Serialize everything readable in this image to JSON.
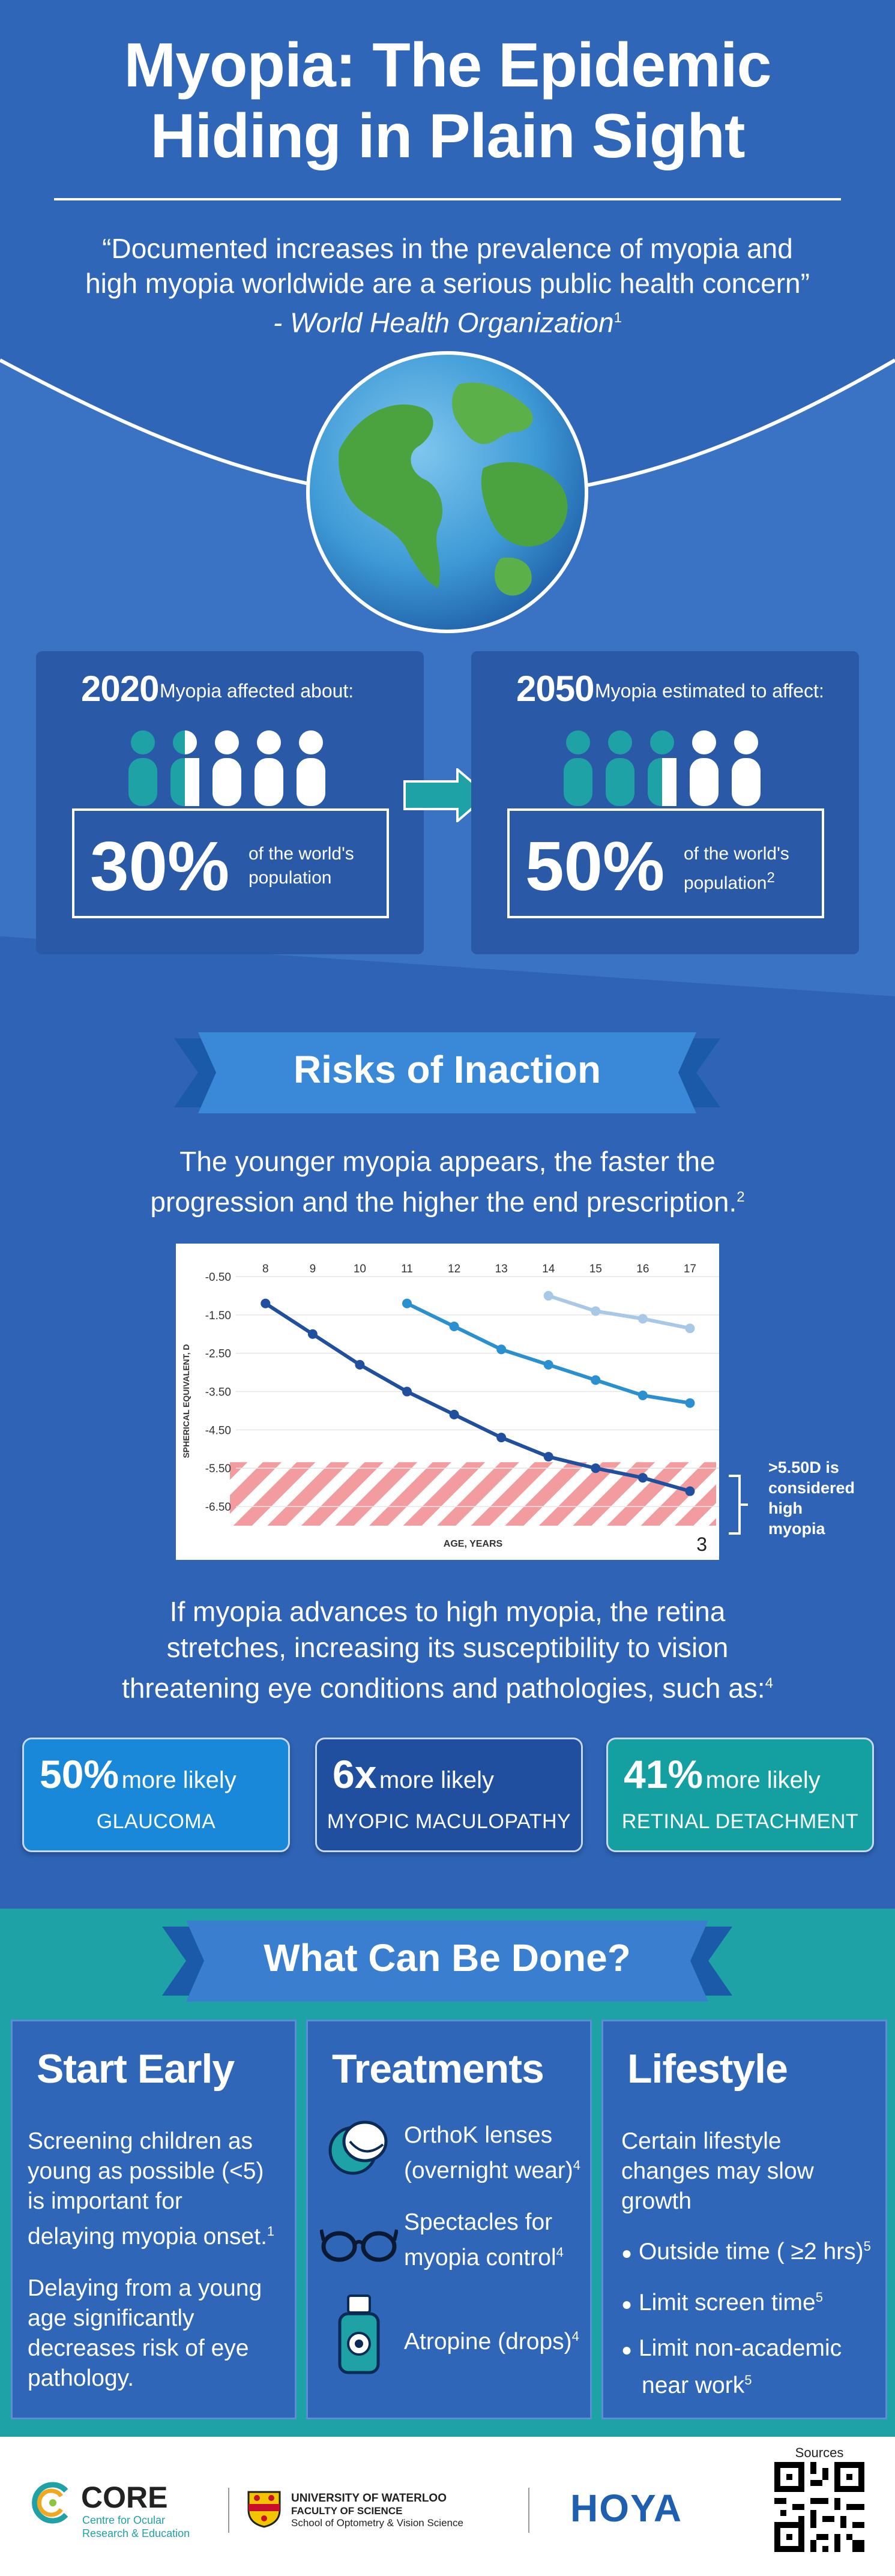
{
  "header": {
    "title_line1": "Myopia: The Epidemic",
    "title_line2": "Hiding in Plain Sight",
    "quote_line1": "“Documented increases in the prevalence of myopia and",
    "quote_line2": "high myopia worldwide are a serious public health concern”",
    "quote_source": "- World Health Organization",
    "quote_ref": "1"
  },
  "stats": [
    {
      "year": "2020",
      "label": "Myopia affected about:",
      "percent": "30%",
      "desc1": "of the world's",
      "desc2": "population",
      "ref": ""
    },
    {
      "year": "2050",
      "label": "Myopia estimated to affect:",
      "percent": "50%",
      "desc1": "of the world's",
      "desc2": "population",
      "ref": "2"
    }
  ],
  "risks": {
    "banner": "Risks of Inaction",
    "intro_line1": "The younger myopia appears, the faster the",
    "intro_line2": "progression and the higher the end prescription.",
    "intro_ref": "2",
    "after_line1": "If myopia advances to high myopia, the retina",
    "after_line2": "stretches, increasing its susceptibility to vision",
    "after_line3": "threatening eye conditions and pathologies, such as:",
    "after_ref": "4",
    "cards": [
      {
        "value": "50%",
        "unit": "more likely",
        "label": "GLAUCOMA",
        "color": "#1a88d8"
      },
      {
        "value": "6x",
        "unit": "more likely",
        "label": "MYOPIC MACULOPATHY",
        "color": "#1f4f9e"
      },
      {
        "value": "41%",
        "unit": "more likely",
        "label": "RETINAL DETACHMENT",
        "color": "#14a0a0"
      }
    ]
  },
  "chart_data": {
    "type": "line",
    "x": [
      8,
      9,
      10,
      11,
      12,
      13,
      14,
      15,
      16,
      17
    ],
    "x_tick_labels": [
      "8",
      "9",
      "10",
      "11",
      "12",
      "13",
      "14",
      "15",
      "16",
      "17"
    ],
    "y_tick_labels": [
      "-0.50",
      "-1.50",
      "-2.50",
      "-3.50",
      "-4.50",
      "-5.50",
      "-6.50"
    ],
    "ylim": [
      -7.0,
      -0.5
    ],
    "xlabel": "AGE, YEARS",
    "ylabel": "SPHERICAL EQUIVALENT, D",
    "chart_ref": "3",
    "high_myopia_threshold": -5.5,
    "annotation_line1": ">5.50D is",
    "annotation_line2": "considered",
    "annotation_line3": "high",
    "annotation_line4": "myopia",
    "series": [
      {
        "name": "onset age 8",
        "x": [
          8,
          9,
          10,
          11,
          12,
          13,
          14,
          15,
          16,
          17
        ],
        "values": [
          -1.2,
          -2.0,
          -2.8,
          -3.5,
          -4.1,
          -4.7,
          -5.2,
          -5.5,
          -5.75,
          -6.1
        ],
        "color": "#1f4f9e"
      },
      {
        "name": "onset age 11",
        "x": [
          11,
          12,
          13,
          14,
          15,
          16,
          17
        ],
        "values": [
          -1.2,
          -1.8,
          -2.4,
          -2.8,
          -3.2,
          -3.6,
          -3.8
        ],
        "color": "#2a90d0"
      },
      {
        "name": "onset age 14",
        "x": [
          14,
          15,
          16,
          17
        ],
        "values": [
          -1.0,
          -1.4,
          -1.6,
          -1.85
        ],
        "color": "#a9c8e8"
      }
    ]
  },
  "actions": {
    "banner": "What Can Be Done?",
    "columns": [
      {
        "title": "Start Early",
        "p1_line1": "Screening children as",
        "p1_line2": "young as possible (<5)",
        "p1_line3": "is important for",
        "p1_line4": "delaying myopia onset.",
        "p1_ref": "1",
        "p2_line1": "Delaying from a young",
        "p2_line2": "age significantly",
        "p2_line3": "decreases risk of eye",
        "p2_line4": "pathology."
      },
      {
        "title": "Treatments",
        "items": [
          {
            "line1": "OrthoK lenses",
            "line2": "(overnight wear)",
            "ref": "4"
          },
          {
            "line1": "Spectacles for",
            "line2": "myopia control",
            "ref": "4"
          },
          {
            "line1": "Atropine (drops)",
            "line2": "",
            "ref": "4"
          }
        ]
      },
      {
        "title": "Lifestyle",
        "intro_line1": "Certain lifestyle",
        "intro_line2": "changes may slow",
        "intro_line3": "growth",
        "bullets": [
          {
            "line1": "Outside time ( ≥2 hrs)",
            "line2": "",
            "ref": "5"
          },
          {
            "line1": "Limit screen time",
            "line2": "",
            "ref": "5"
          },
          {
            "line1": "Limit non-academic",
            "line2": "near work",
            "ref": "5"
          }
        ]
      }
    ]
  },
  "footer": {
    "core_name": "CORE",
    "core_sub1": "Centre for Ocular",
    "core_sub2": "Research & Education",
    "uw_line1": "UNIVERSITY OF WATERLOO",
    "uw_line2": "FACULTY OF SCIENCE",
    "uw_line3": "School of Optometry & Vision Science",
    "hoya": "HOYA",
    "sources_label": "Sources"
  },
  "colors": {
    "navy": "#2e63b5",
    "teal": "#1fa2a6",
    "banner_blue": "#3a7fcf",
    "red_zone": "#f08a8f"
  }
}
